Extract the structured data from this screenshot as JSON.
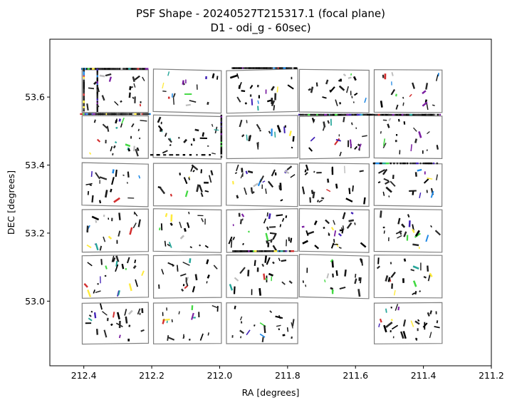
{
  "chart_data": {
    "type": "scatter",
    "title_line1": "PSF Shape - 20240527T215317.1 (focal plane)",
    "title_line2": "D1 - odi_g - 60sec)",
    "xlabel": "RA [degrees]",
    "ylabel": "DEC [degrees]",
    "xlim": [
      212.5,
      211.2
    ],
    "ylim": [
      52.81,
      53.77
    ],
    "x_inverted": true,
    "grid": false,
    "xticks": [
      212.4,
      212.2,
      212.0,
      211.8,
      211.6,
      211.4,
      211.2
    ],
    "xtick_labels": [
      "212.4",
      "212.2",
      "212.0",
      "211.8",
      "211.6",
      "211.4",
      "211.2"
    ],
    "yticks": [
      53.0,
      53.2,
      53.4,
      53.6
    ],
    "ytick_labels": [
      "53.0",
      "53.2",
      "53.4",
      "53.6"
    ],
    "detector_columns_ra": [
      [
        212.405,
        212.21
      ],
      [
        212.195,
        211.995
      ],
      [
        211.98,
        211.77
      ],
      [
        211.765,
        211.56
      ],
      [
        211.545,
        211.345
      ]
    ],
    "detector_rows_dec": [
      [
        53.68,
        53.555
      ],
      [
        53.545,
        53.42
      ],
      [
        53.405,
        53.28
      ],
      [
        53.27,
        53.145
      ],
      [
        53.135,
        53.01
      ],
      [
        52.995,
        52.875
      ]
    ],
    "missing_detectors": [
      [
        5,
        3
      ]
    ],
    "palette": [
      "#000000",
      "#1a1a1a",
      "#2b2b2b",
      "#000000",
      "#7b1fa2",
      "#3f1fb5",
      "#d32f2f",
      "#1e88e5",
      "#26a69a",
      "#43d943",
      "#ffeb3b",
      "#bdbdbd"
    ]
  }
}
